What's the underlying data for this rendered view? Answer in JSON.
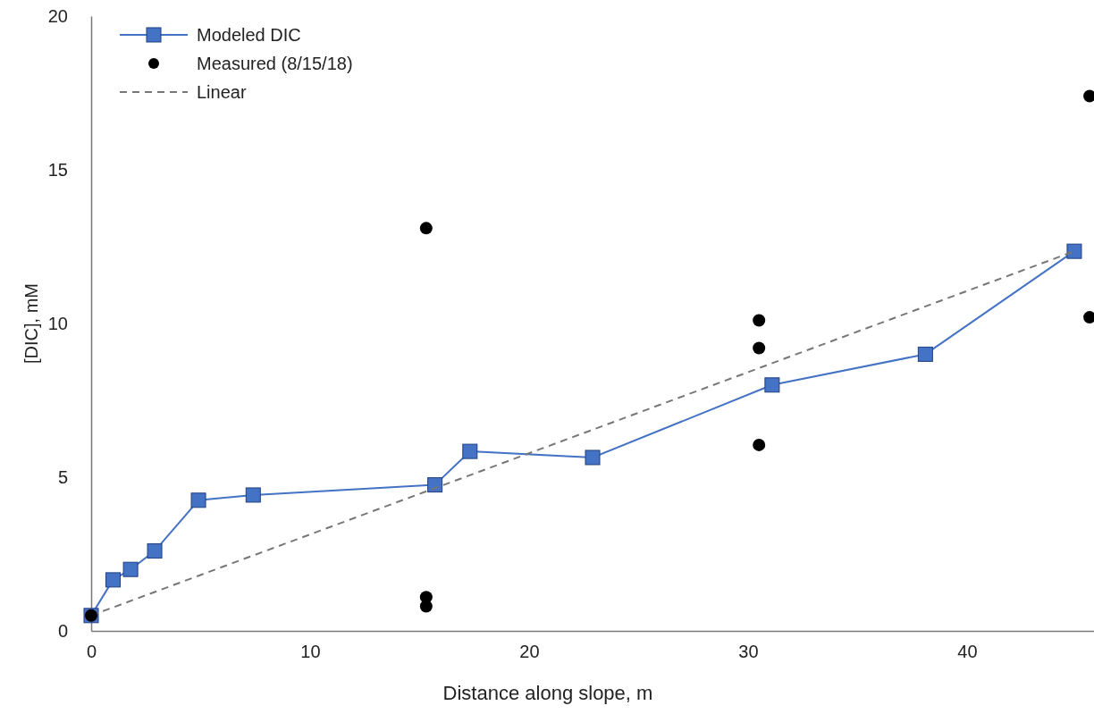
{
  "chart_data": {
    "type": "line",
    "xlabel": "Distance along slope, m",
    "ylabel": "[DIC], mM",
    "xlim": [
      0,
      45.8
    ],
    "ylim": [
      0,
      20
    ],
    "xticks": [
      0,
      10,
      20,
      30,
      40
    ],
    "yticks": [
      0,
      5,
      10,
      15,
      20
    ],
    "grid": false,
    "legend": "top left",
    "series": [
      {
        "name": "Modeled DIC",
        "type": "line",
        "color": "#4472c4",
        "marker": "square",
        "line_style": "solid",
        "x": [
          0,
          1,
          1.8,
          2.9,
          4.9,
          7.4,
          15.7,
          17.3,
          22.9,
          31.1,
          38.1,
          44.9
        ],
        "values": [
          0.5,
          1.66,
          2.0,
          2.6,
          4.25,
          4.42,
          4.75,
          5.84,
          5.64,
          8.0,
          9.0,
          12.35
        ]
      },
      {
        "name": "Measured (8/15/18)",
        "type": "scatter",
        "color": "#000000",
        "marker": "circle",
        "x": [
          0,
          15.3,
          15.3,
          15.3,
          30.5,
          30.5,
          30.5,
          45.6,
          45.6
        ],
        "values": [
          0.5,
          13.1,
          1.1,
          0.8,
          10.1,
          9.2,
          6.05,
          17.4,
          10.2
        ]
      },
      {
        "name": "Linear",
        "type": "line",
        "color": "#777777",
        "marker": "none",
        "line_style": "dashed",
        "x": [
          0,
          44.9
        ],
        "values": [
          0.5,
          12.35
        ]
      }
    ]
  }
}
